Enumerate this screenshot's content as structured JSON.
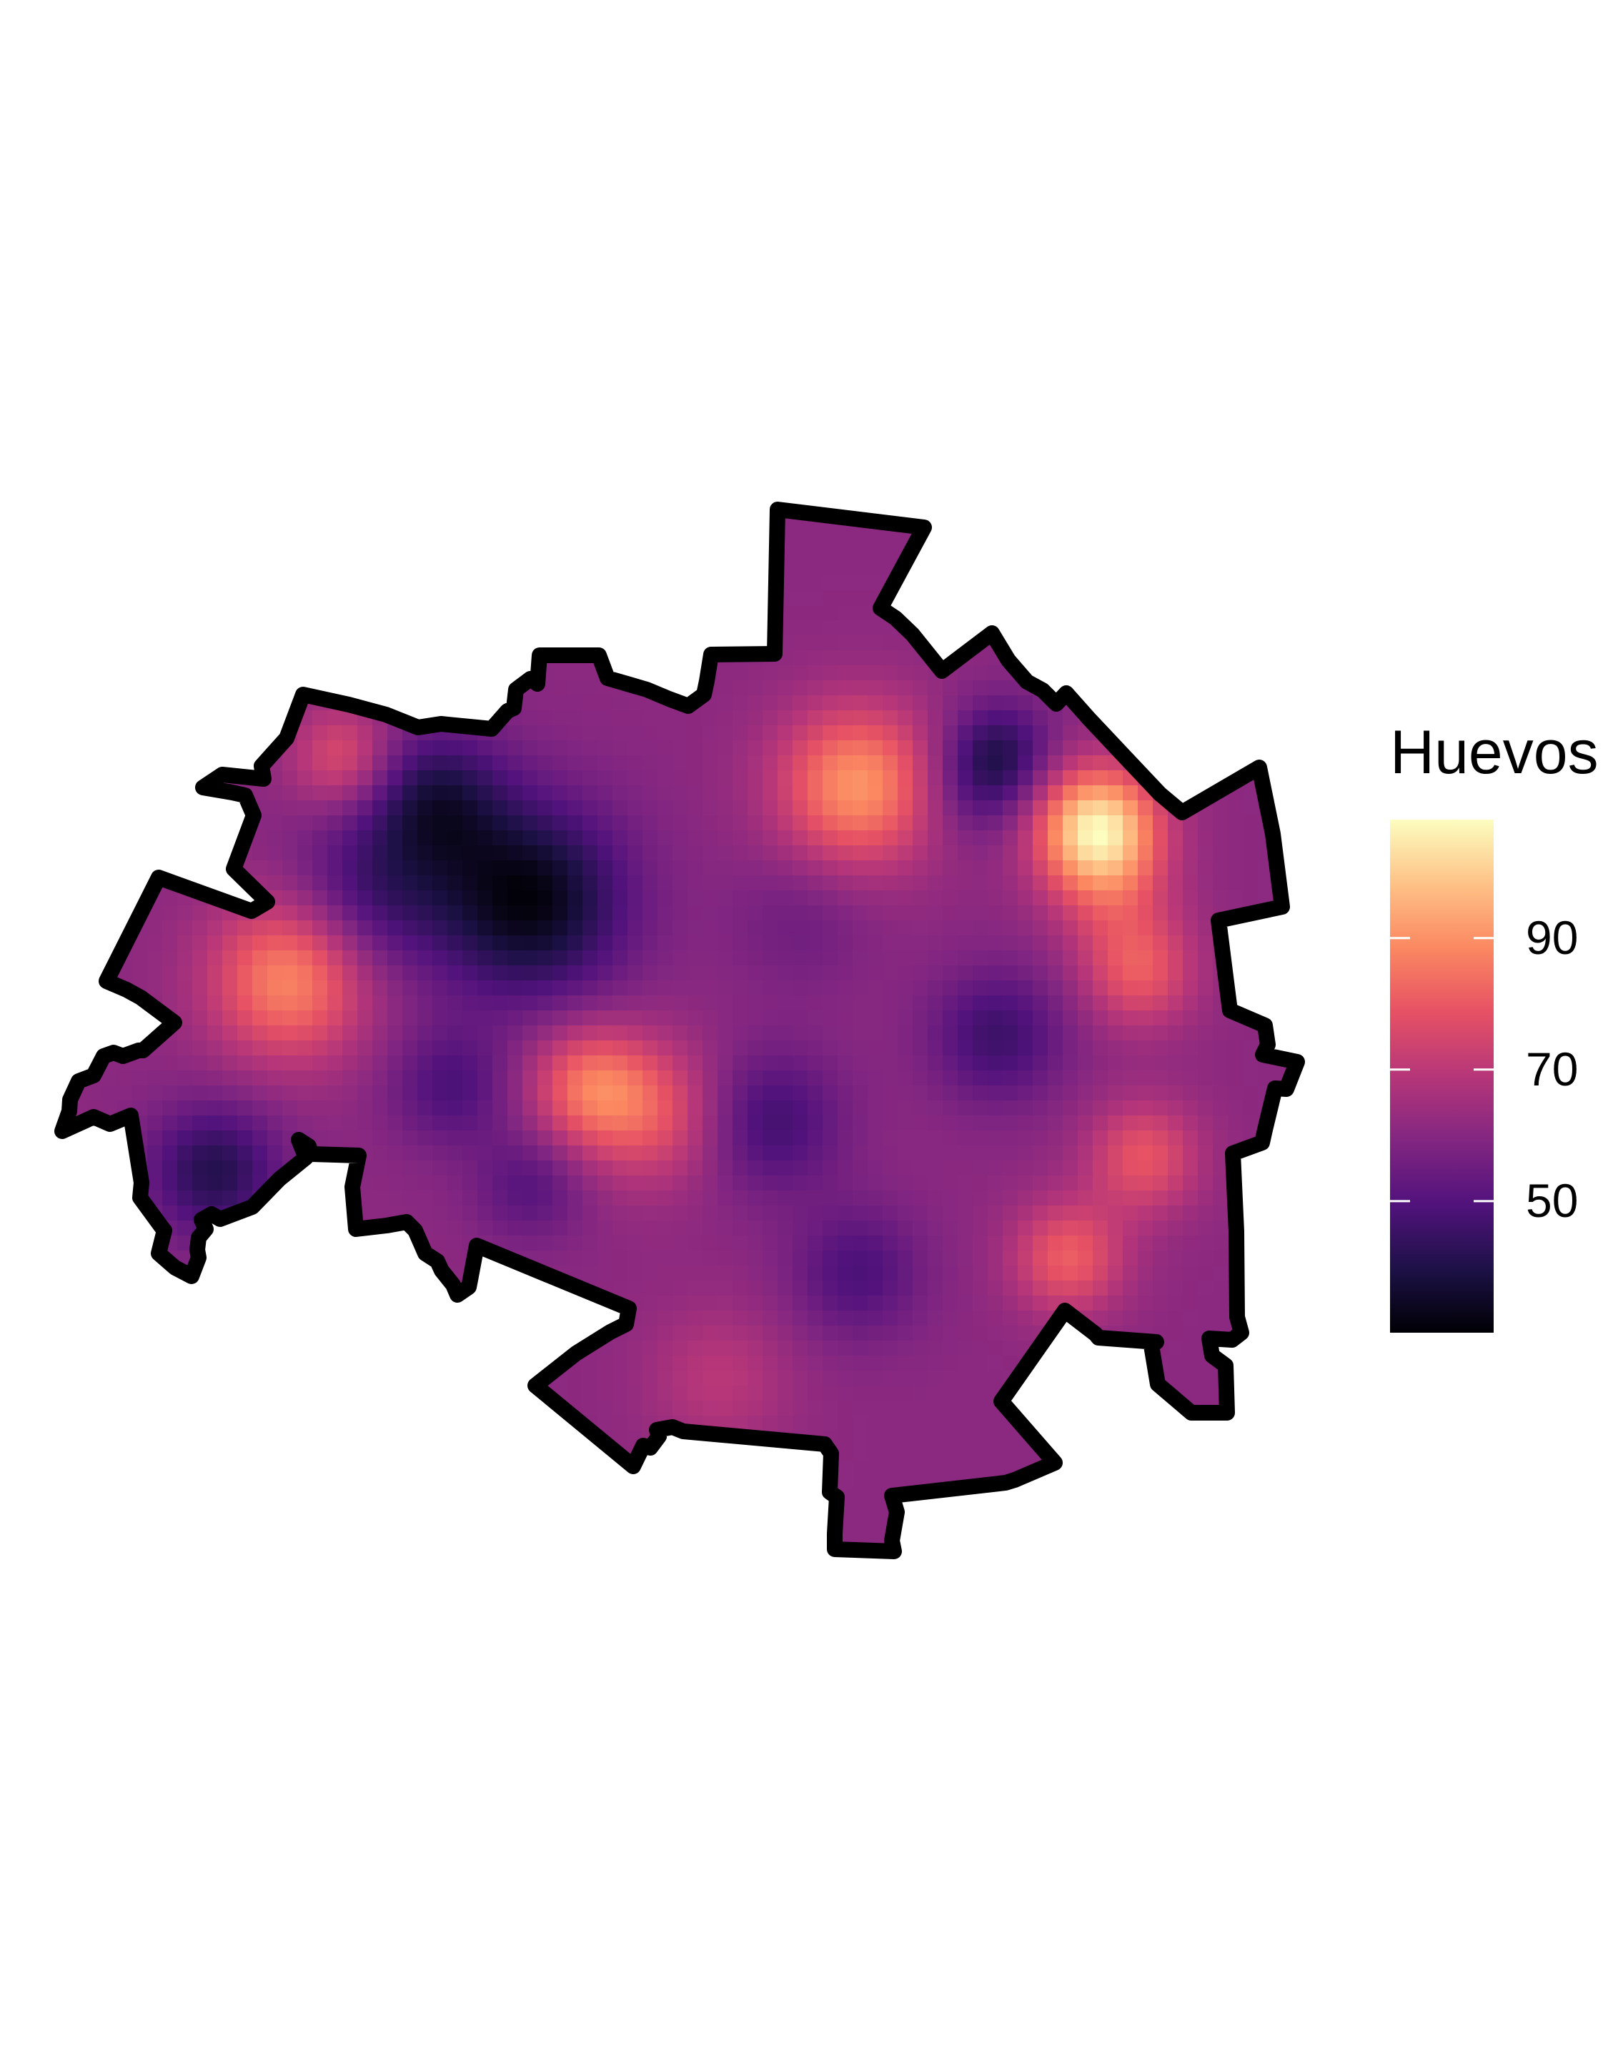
{
  "chart_data": {
    "type": "heatmap",
    "title": "",
    "legend": {
      "title": "Huevos",
      "placement": "right",
      "range": [
        30,
        108
      ],
      "breaks": [
        {
          "value": 90,
          "label": "90"
        },
        {
          "value": 70,
          "label": "70"
        },
        {
          "value": 50,
          "label": "50"
        }
      ],
      "colormap": "magma",
      "color_stops": [
        "#000004",
        "#1d1147",
        "#51127c",
        "#822681",
        "#b63679",
        "#e65164",
        "#fb8861",
        "#fec287",
        "#fcfdbf"
      ]
    },
    "boundary_color": "#000000",
    "hotspots": [
      {
        "region": "north-east",
        "value": 108
      },
      {
        "region": "north-center",
        "value": 92
      },
      {
        "region": "west",
        "value": 90
      },
      {
        "region": "center",
        "value": 84
      },
      {
        "region": "east",
        "value": 80
      },
      {
        "region": "south-east",
        "value": 80
      },
      {
        "region": "north-west",
        "value": 78
      }
    ],
    "lows": [
      {
        "region": "center-north-west",
        "value": 30
      },
      {
        "region": "south-west",
        "value": 40
      },
      {
        "region": "center",
        "value": 46
      },
      {
        "region": "east",
        "value": 45
      },
      {
        "region": "north-east",
        "value": 45
      }
    ]
  }
}
